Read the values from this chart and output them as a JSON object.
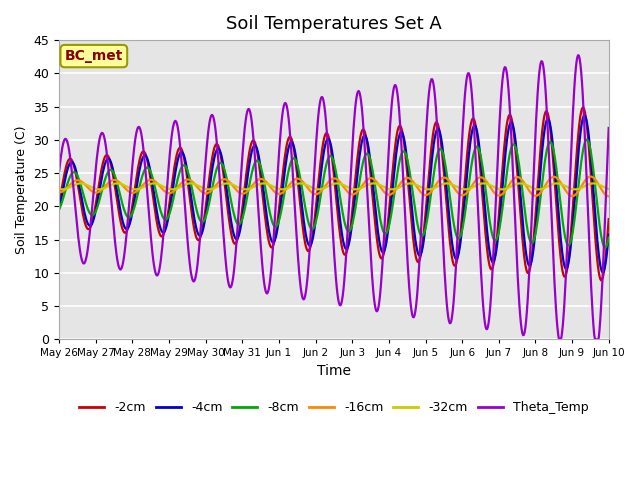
{
  "title": "Soil Temperatures Set A",
  "xlabel": "Time",
  "ylabel": "Soil Temperature (C)",
  "ylim": [
    0,
    45
  ],
  "yticks": [
    0,
    5,
    10,
    15,
    20,
    25,
    30,
    35,
    40,
    45
  ],
  "legend_label": "BC_met",
  "series_labels": [
    "-2cm",
    "-4cm",
    "-8cm",
    "-16cm",
    "-32cm",
    "Theta_Temp"
  ],
  "series_colors": [
    "#cc0000",
    "#0000cc",
    "#00aa00",
    "#ff8800",
    "#cccc00",
    "#9900cc"
  ],
  "x_tick_labels": [
    "May 26",
    "May 27",
    "May 28",
    "May 29",
    "May 30",
    "May 31",
    "Jun 1",
    "Jun 2",
    "Jun 3",
    "Jun 4",
    "Jun 5",
    "Jun 6",
    "Jun 7",
    "Jun 8",
    "Jun 9",
    "Jun 10"
  ],
  "plot_background": "#e5e5e5",
  "title_fontsize": 13
}
